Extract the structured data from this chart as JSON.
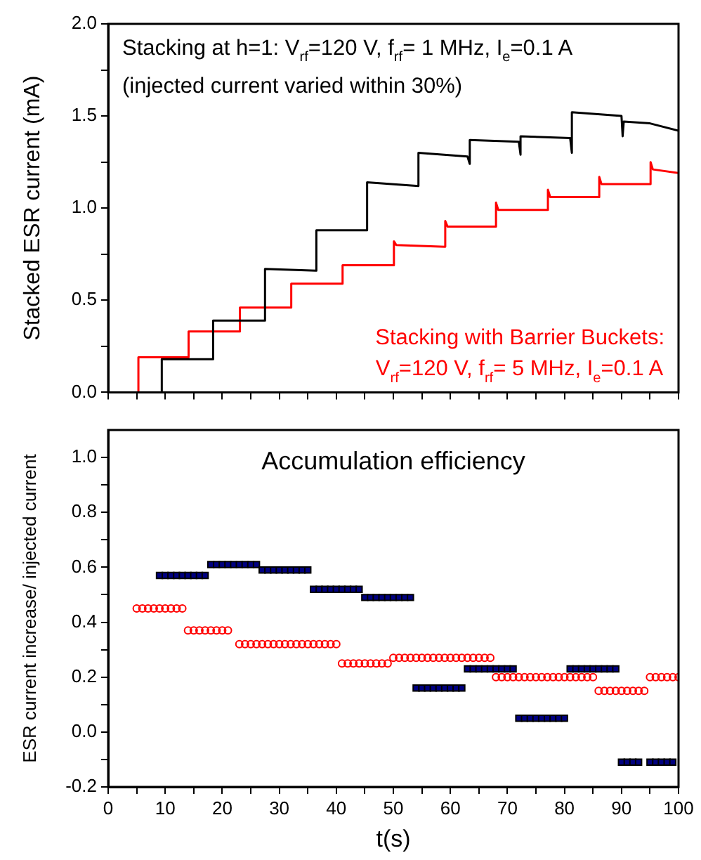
{
  "chart_data": [
    {
      "type": "line",
      "tick_labels": "y",
      "ylabel": "Stacked ESR current (mA)",
      "xlim": [
        0,
        100
      ],
      "xticks": [
        {
          "value": 0,
          "label": null
        },
        {
          "value": 5,
          "label": null
        },
        {
          "value": 10,
          "label": null
        },
        {
          "value": 15,
          "label": null
        },
        {
          "value": 20,
          "label": null
        },
        {
          "value": 25,
          "label": null
        },
        {
          "value": 30,
          "label": null
        },
        {
          "value": 35,
          "label": null
        },
        {
          "value": 40,
          "label": null
        },
        {
          "value": 45,
          "label": null
        },
        {
          "value": 50,
          "label": null
        },
        {
          "value": 55,
          "label": null
        },
        {
          "value": 60,
          "label": null
        },
        {
          "value": 65,
          "label": null
        },
        {
          "value": 70,
          "label": null
        },
        {
          "value": 75,
          "label": null
        },
        {
          "value": 80,
          "label": null
        },
        {
          "value": 85,
          "label": null
        },
        {
          "value": 90,
          "label": null
        },
        {
          "value": 95,
          "label": null
        },
        {
          "value": 100,
          "label": null
        }
      ],
      "ylim": [
        0,
        2
      ],
      "yticks": [
        {
          "value": 0,
          "label": "0.0"
        },
        {
          "value": 0.25,
          "label": null
        },
        0.5,
        {
          "value": 0.75,
          "label": null
        },
        {
          "value": 1,
          "label": "1.0"
        },
        {
          "value": 1.25,
          "label": null
        },
        1.5,
        {
          "value": 1.75,
          "label": null
        },
        {
          "value": 2,
          "label": "2.0"
        }
      ],
      "grid": false,
      "legend": false,
      "marker": "none",
      "line_style": "solid",
      "annotations": [
        "(injected current varied within 30%)"
      ],
      "series": [
        {
          "name": "Stacking at h=1: V$_{rf}$=120 V, f$_{rf}$= 1 MHz, I$_{e}$=0.1 A",
          "color": "#000000",
          "x": [
            0,
            9.4,
            9.4,
            18.4,
            18.4,
            27.5,
            27.5,
            36.5,
            36.5,
            45.4,
            45.4,
            54.4,
            54.4,
            63,
            63.4,
            63.4,
            72,
            72.3,
            72.3,
            81,
            81.3,
            81.3,
            90,
            90.2,
            90.4,
            95,
            100
          ],
          "values": [
            0,
            0,
            0.18,
            0.18,
            0.39,
            0.39,
            0.67,
            0.66,
            0.88,
            0.88,
            1.14,
            1.12,
            1.3,
            1.28,
            1.24,
            1.37,
            1.36,
            1.29,
            1.39,
            1.38,
            1.3,
            1.52,
            1.5,
            1.39,
            1.47,
            1.46,
            1.42
          ]
        },
        {
          "name": "Stacking with Barrier Buckets: V$_{rf}$=120 V, f$_{rf}$= 5 MHz, I$_{e}$=0.1 A",
          "color": "#ff0000",
          "x": [
            0,
            5.3,
            5.3,
            14.1,
            14.1,
            23.1,
            23.1,
            32.1,
            32.1,
            41.1,
            41.1,
            50.1,
            50.1,
            50.5,
            59.1,
            59.1,
            59.5,
            68,
            68,
            68.4,
            77.1,
            77.1,
            77.5,
            86.1,
            86.1,
            86.5,
            95.1,
            95.1,
            95.5,
            100
          ],
          "values": [
            0,
            0,
            0.19,
            0.19,
            0.33,
            0.33,
            0.46,
            0.46,
            0.59,
            0.59,
            0.69,
            0.69,
            0.82,
            0.8,
            0.79,
            0.93,
            0.9,
            0.9,
            1.03,
            0.99,
            0.99,
            1.1,
            1.06,
            1.06,
            1.17,
            1.13,
            1.13,
            1.25,
            1.21,
            1.19
          ]
        }
      ]
    },
    {
      "type": "scatter",
      "title": "Accumulation efficiency",
      "xlabel": "t(s)",
      "ylabel": "ESR current increase/ injected current",
      "xlim": [
        0,
        100
      ],
      "xticks": [
        {
          "value": 0,
          "label": "0"
        },
        {
          "value": 5,
          "label": null
        },
        10,
        {
          "value": 15,
          "label": null
        },
        20,
        {
          "value": 25,
          "label": null
        },
        30,
        {
          "value": 35,
          "label": null
        },
        40,
        {
          "value": 45,
          "label": null
        },
        50,
        {
          "value": 55,
          "label": null
        },
        60,
        {
          "value": 65,
          "label": null
        },
        70,
        {
          "value": 75,
          "label": null
        },
        80,
        {
          "value": 85,
          "label": null
        },
        90,
        {
          "value": 95,
          "label": null
        },
        100
      ],
      "ylim": [
        -0.2,
        1.1
      ],
      "yticks": [
        -0.2,
        {
          "value": -0.1,
          "label": null
        },
        {
          "value": 0,
          "label": "0.0"
        },
        {
          "value": 0.1,
          "label": null
        },
        0.2,
        {
          "value": 0.3,
          "label": null
        },
        0.4,
        {
          "value": 0.5,
          "label": null
        },
        0.6,
        {
          "value": 0.7,
          "label": null
        },
        0.8,
        {
          "value": 0.9,
          "label": null
        },
        {
          "value": 1,
          "label": "1.0"
        }
      ],
      "grid": false,
      "legend": false,
      "series": [
        {
          "color": "#000080",
          "marker": "square",
          "x": [
            9,
            10,
            11,
            12,
            13,
            14,
            15,
            16,
            17,
            18,
            19,
            20,
            21,
            22,
            23,
            24,
            25,
            26,
            27,
            28,
            29,
            30,
            31,
            32,
            33,
            34,
            35,
            36,
            37,
            38,
            39,
            40,
            41,
            42,
            43,
            44,
            45,
            46,
            47,
            48,
            49,
            50,
            51,
            52,
            53,
            54,
            55,
            56,
            57,
            58,
            59,
            60,
            61,
            62,
            63,
            64,
            65,
            66,
            67,
            68,
            69,
            70,
            71,
            72,
            73,
            74,
            75,
            76,
            77,
            78,
            79,
            80,
            81,
            82,
            83,
            84,
            85,
            86,
            87,
            88,
            89,
            90,
            91,
            92,
            93,
            95,
            96,
            97,
            98,
            99
          ],
          "values": [
            0.57,
            0.57,
            0.57,
            0.57,
            0.57,
            0.57,
            0.57,
            0.57,
            0.57,
            0.61,
            0.61,
            0.61,
            0.61,
            0.61,
            0.61,
            0.61,
            0.61,
            0.61,
            0.59,
            0.59,
            0.59,
            0.59,
            0.59,
            0.59,
            0.59,
            0.59,
            0.59,
            0.52,
            0.52,
            0.52,
            0.52,
            0.52,
            0.52,
            0.52,
            0.52,
            0.52,
            0.49,
            0.49,
            0.49,
            0.49,
            0.49,
            0.49,
            0.49,
            0.49,
            0.49,
            0.16,
            0.16,
            0.16,
            0.16,
            0.16,
            0.16,
            0.16,
            0.16,
            0.16,
            0.23,
            0.23,
            0.23,
            0.23,
            0.23,
            0.23,
            0.23,
            0.23,
            0.23,
            0.05,
            0.05,
            0.05,
            0.05,
            0.05,
            0.05,
            0.05,
            0.05,
            0.05,
            0.23,
            0.23,
            0.23,
            0.23,
            0.23,
            0.23,
            0.23,
            0.23,
            0.23,
            -0.11,
            -0.11,
            -0.11,
            -0.11,
            -0.11,
            -0.11,
            -0.11,
            -0.11,
            -0.11
          ]
        },
        {
          "color": "#ff0000",
          "marker": "circle",
          "x": [
            5,
            6,
            7,
            8,
            9,
            10,
            11,
            12,
            13,
            14,
            15,
            16,
            17,
            18,
            19,
            20,
            21,
            23,
            24,
            25,
            26,
            27,
            28,
            29,
            30,
            31,
            32,
            33,
            34,
            35,
            36,
            37,
            38,
            39,
            40,
            41,
            42,
            43,
            44,
            45,
            46,
            47,
            48,
            49,
            50,
            51,
            52,
            53,
            54,
            55,
            56,
            57,
            58,
            59,
            60,
            61,
            62,
            63,
            64,
            65,
            66,
            67,
            68,
            69,
            70,
            71,
            72,
            73,
            74,
            75,
            76,
            77,
            78,
            79,
            80,
            81,
            82,
            83,
            84,
            85,
            86,
            87,
            88,
            89,
            90,
            91,
            92,
            93,
            94,
            95,
            96,
            97,
            98,
            99,
            100
          ],
          "values": [
            0.45,
            0.45,
            0.45,
            0.45,
            0.45,
            0.45,
            0.45,
            0.45,
            0.45,
            0.37,
            0.37,
            0.37,
            0.37,
            0.37,
            0.37,
            0.37,
            0.37,
            0.32,
            0.32,
            0.32,
            0.32,
            0.32,
            0.32,
            0.32,
            0.32,
            0.32,
            0.32,
            0.32,
            0.32,
            0.32,
            0.32,
            0.32,
            0.32,
            0.32,
            0.32,
            0.25,
            0.25,
            0.25,
            0.25,
            0.25,
            0.25,
            0.25,
            0.25,
            0.25,
            0.27,
            0.27,
            0.27,
            0.27,
            0.27,
            0.27,
            0.27,
            0.27,
            0.27,
            0.27,
            0.27,
            0.27,
            0.27,
            0.27,
            0.27,
            0.27,
            0.27,
            0.27,
            0.2,
            0.2,
            0.2,
            0.2,
            0.2,
            0.2,
            0.2,
            0.2,
            0.2,
            0.2,
            0.2,
            0.2,
            0.2,
            0.2,
            0.2,
            0.2,
            0.2,
            0.2,
            0.15,
            0.15,
            0.15,
            0.15,
            0.15,
            0.15,
            0.15,
            0.15,
            0.15,
            0.2,
            0.2,
            0.2,
            0.2,
            0.2,
            0.2
          ]
        }
      ]
    }
  ]
}
